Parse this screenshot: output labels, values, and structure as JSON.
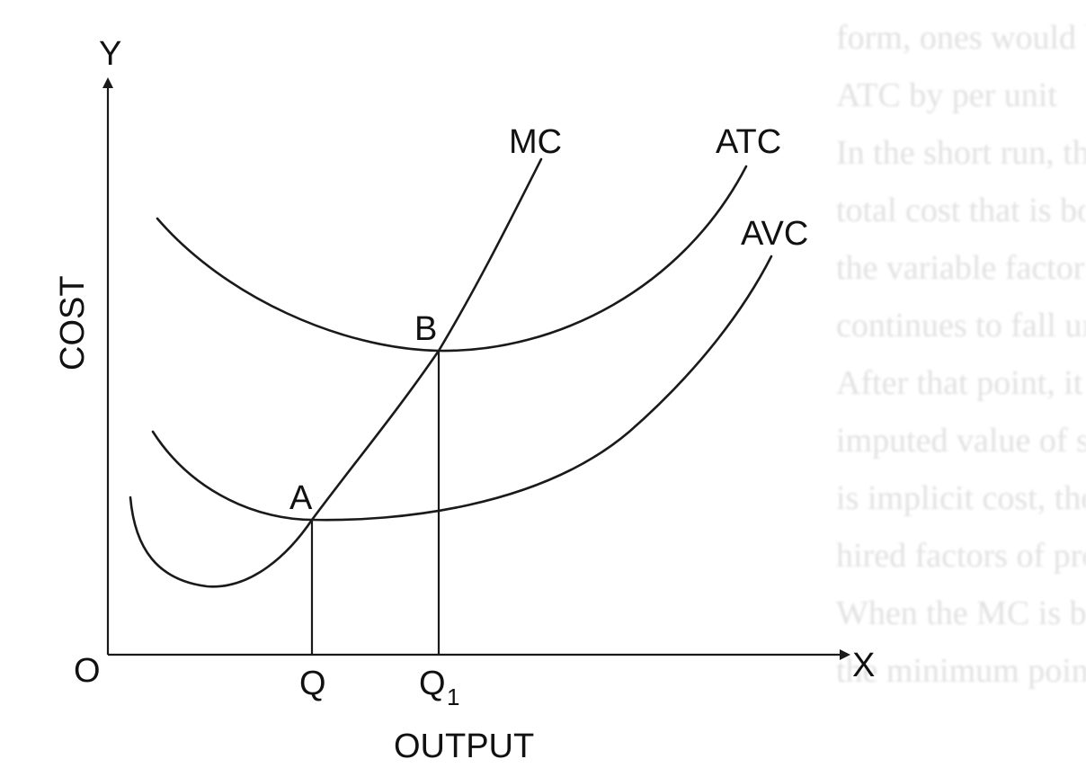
{
  "diagram": {
    "axes": {
      "y_axis_letter": "Y",
      "x_axis_letter": "X",
      "origin_label": "O",
      "y_title": "COST",
      "x_title": "OUTPUT"
    },
    "curves": {
      "mc_label": "MC",
      "atc_label": "ATC",
      "avc_label": "AVC"
    },
    "points": {
      "a_label": "A",
      "b_label": "B"
    },
    "x_ticks": {
      "q_label": "Q",
      "q1_label": "Q",
      "q1_subscript": "1"
    }
  },
  "background_bleed": [
    "form, ones would be",
    "ATC by per unit",
    "In the short run, the average",
    "total cost that is both fixed",
    "the variable factors. Since",
    "continues to fall until the",
    "After that point, it rises",
    "imputed value of services",
    "is implicit cost, the",
    "hired factors of production.",
    "When the MC is below the AVC",
    "the minimum point of the AVC"
  ]
}
